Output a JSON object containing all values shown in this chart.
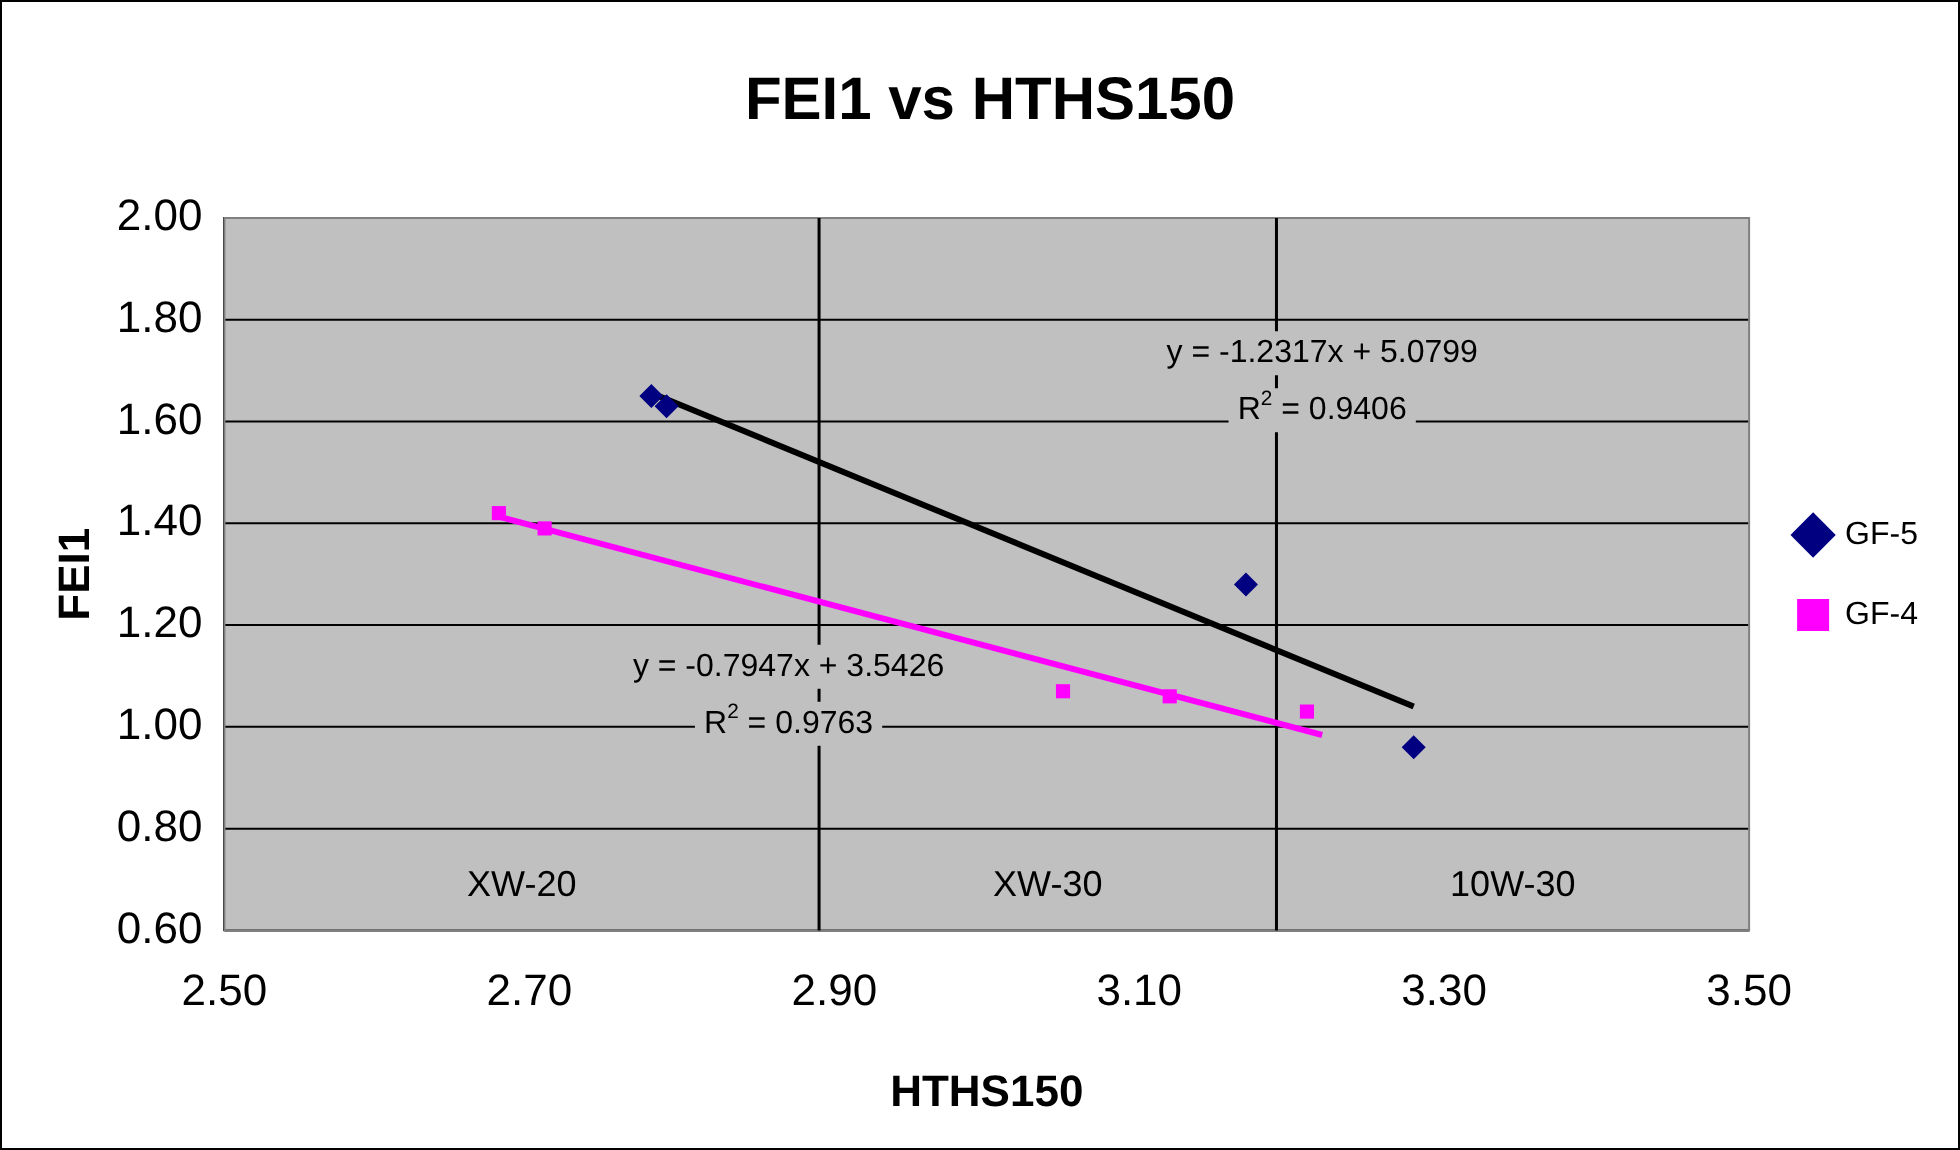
{
  "chart_data": {
    "type": "scatter",
    "title": "FEI1 vs HTHS150",
    "xlabel": "HTHS150",
    "ylabel": "FEI1",
    "series": [
      {
        "name": "GF-5",
        "color": "#000080",
        "marker": "diamond",
        "x": [
          2.78,
          2.79,
          3.17,
          3.28
        ],
        "values": [
          1.65,
          1.63,
          1.28,
          0.96
        ]
      },
      {
        "name": "GF-4",
        "color": "#ff00ff",
        "marker": "square",
        "x": [
          2.68,
          2.71,
          3.05,
          3.12,
          3.21
        ],
        "values": [
          1.42,
          1.39,
          1.07,
          1.06,
          1.03
        ]
      },
      {
        "type": "line",
        "color": "#000000",
        "x": [
          2.78,
          3.28
        ],
        "values": [
          1.656,
          1.04
        ]
      },
      {
        "type": "line",
        "color": "#ff00ff",
        "x": [
          2.68,
          3.22
        ],
        "values": [
          1.413,
          0.984
        ]
      }
    ],
    "annotations": [
      "y = -1.2317x + 5.0799",
      "R$^{2}$ = 0.9406",
      "y = -0.7947x + 3.5426",
      "R$^{2}$ = 0.9763",
      "XW-20",
      "XW-30",
      "10W-30"
    ],
    "ref_lines": [
      {
        "axis": "x",
        "value": 2.89,
        "color": "#000000"
      },
      {
        "axis": "x",
        "value": 3.19,
        "color": "#000000"
      }
    ],
    "xlim": [
      2.5,
      3.5
    ],
    "xticks": [
      {
        "value": 2.5,
        "label": "2.50"
      },
      {
        "value": 2.7,
        "label": "2.70"
      },
      {
        "value": 2.9,
        "label": "2.90"
      },
      {
        "value": 3.1,
        "label": "3.10"
      },
      {
        "value": 3.3,
        "label": "3.30"
      },
      {
        "value": 3.5,
        "label": "3.50"
      }
    ],
    "ylim": [
      0.6,
      2.0
    ],
    "yticks": [
      {
        "value": 0.6,
        "label": "0.60"
      },
      {
        "value": 0.8,
        "label": "0.80"
      },
      {
        "value": 1.0,
        "label": "1.00"
      },
      {
        "value": 1.2,
        "label": "1.20"
      },
      {
        "value": 1.4,
        "label": "1.40"
      },
      {
        "value": 1.6,
        "label": "1.60"
      },
      {
        "value": 1.8,
        "label": "1.80"
      },
      {
        "value": 2.0,
        "label": "2.00"
      }
    ],
    "grid": "y",
    "legend": "right"
  }
}
